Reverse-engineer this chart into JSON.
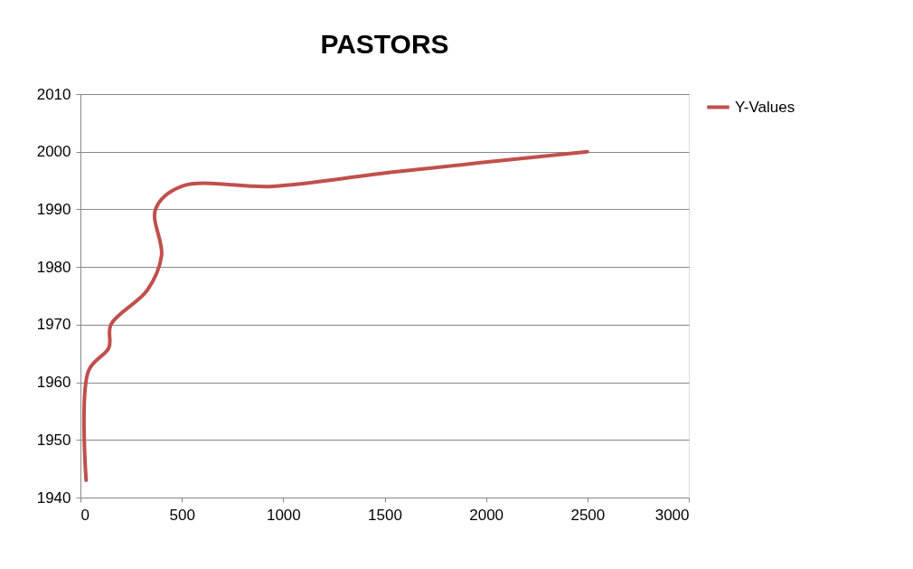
{
  "chart_data": {
    "type": "line",
    "title": "PASTORS",
    "x": [
      28,
      40,
      140,
      150,
      330,
      400,
      370,
      500,
      950,
      1550,
      2500
    ],
    "series": [
      {
        "name": "Y-Values",
        "color": "#c0504d",
        "values": [
          1943,
          1962,
          1966,
          1970,
          1976,
          1982,
          1990,
          1994,
          1994,
          1996.5,
          2000
        ]
      }
    ],
    "xlim": [
      0,
      3000
    ],
    "xticks": [
      0,
      500,
      1000,
      1500,
      2000,
      2500,
      3000
    ],
    "ylim": [
      1940,
      2010
    ],
    "yticks": [
      1940,
      1950,
      1960,
      1970,
      1980,
      1990,
      2000,
      2010
    ],
    "grid": "y",
    "legend": "right",
    "marker": "none",
    "line_style": "solid"
  }
}
